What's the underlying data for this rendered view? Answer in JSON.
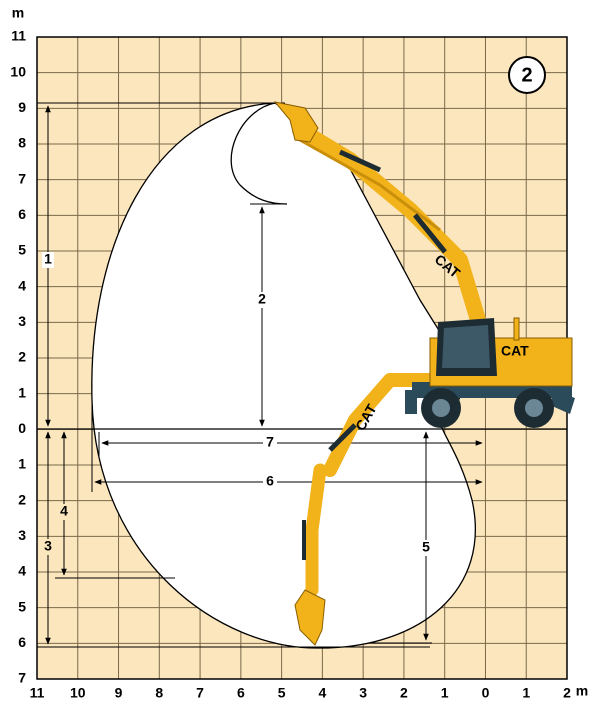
{
  "chart_data": {
    "type": "range-diagram",
    "diagram_number": "2",
    "unit": "m",
    "xlim": [
      11,
      -2
    ],
    "ylim": [
      -7,
      11
    ],
    "xticks": [
      11,
      10,
      9,
      8,
      7,
      6,
      5,
      4,
      3,
      2,
      1,
      0,
      {
        "value": -1,
        "label": "1"
      },
      {
        "value": -2,
        "label": "2"
      }
    ],
    "yticks": [
      {
        "value": -7,
        "label": "7"
      },
      {
        "value": -6,
        "label": "6"
      },
      {
        "value": -5,
        "label": "5"
      },
      {
        "value": -4,
        "label": "4"
      },
      {
        "value": -3,
        "label": "3"
      },
      {
        "value": -2,
        "label": "2"
      },
      {
        "value": -1,
        "label": "1"
      },
      0,
      1,
      2,
      3,
      4,
      5,
      6,
      7,
      8,
      9,
      10,
      11
    ],
    "grid": true,
    "dimensions": [
      "1",
      "2",
      "3",
      "4",
      "5",
      "6",
      "7"
    ],
    "logo": "CAT"
  }
}
